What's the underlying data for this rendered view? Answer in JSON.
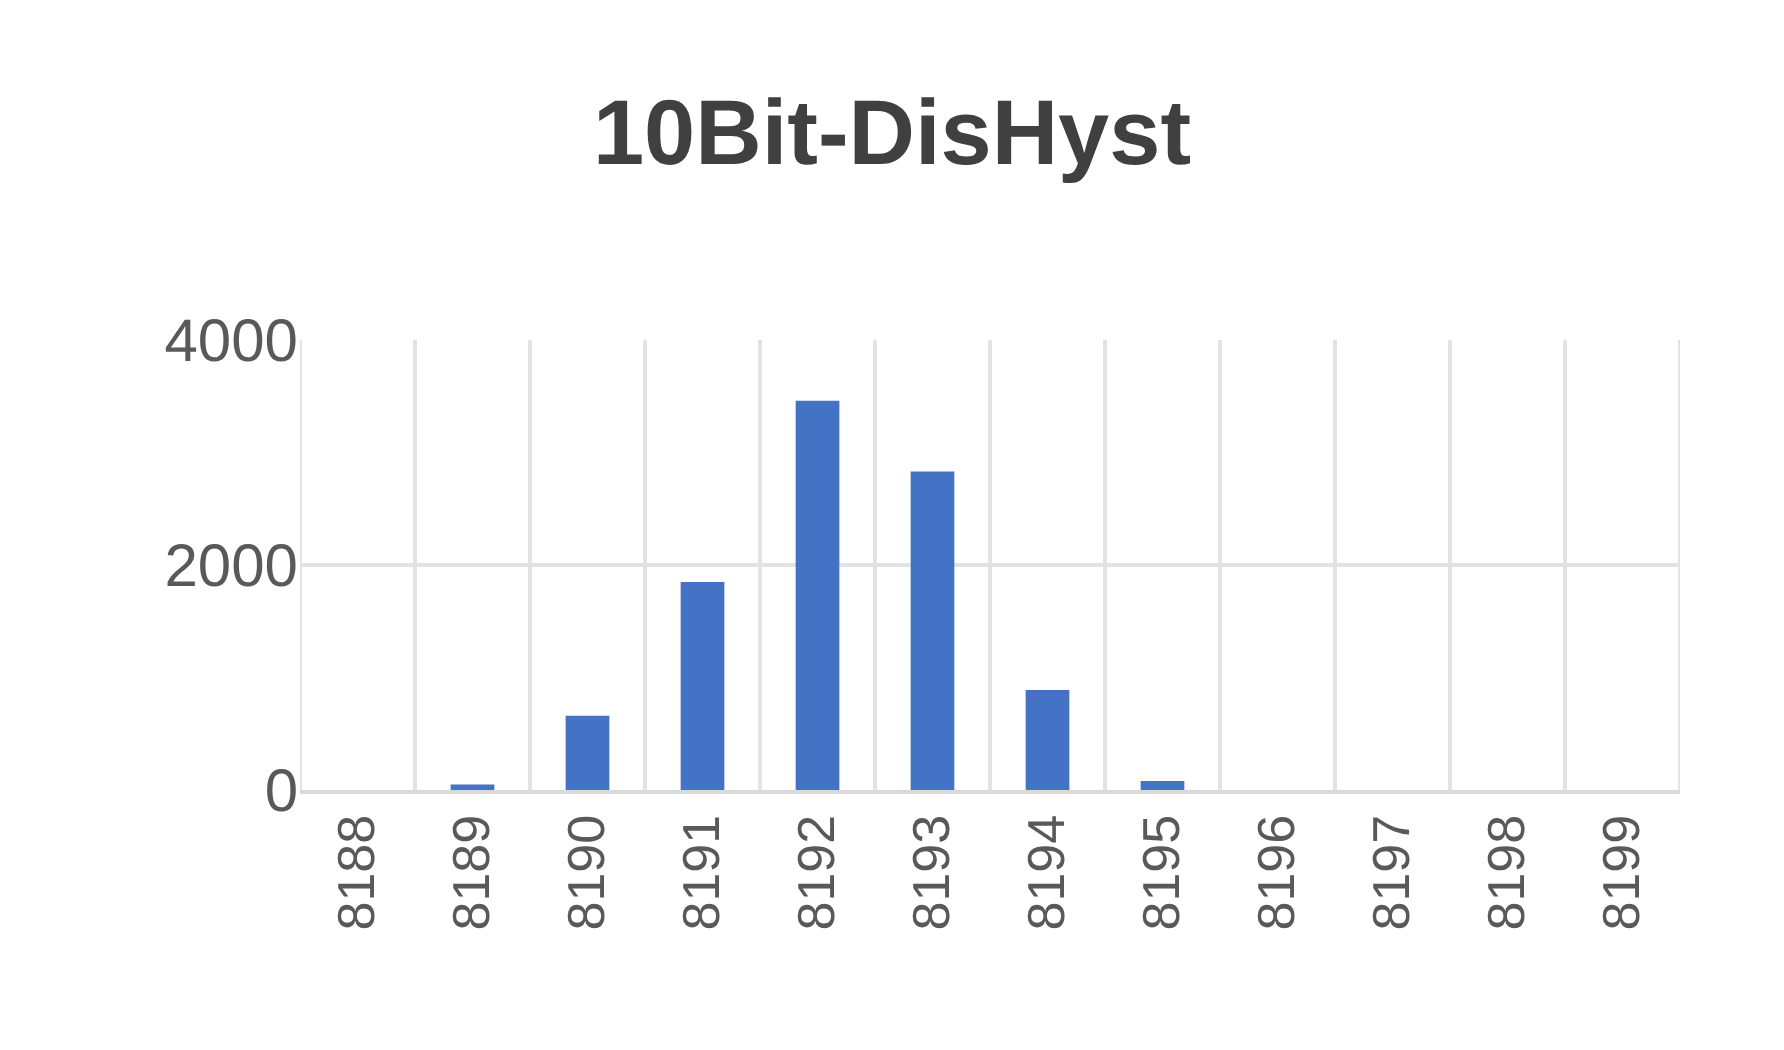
{
  "chart_data": {
    "type": "bar",
    "title": "10Bit-DisHyst",
    "categories": [
      "8188",
      "8189",
      "8190",
      "8191",
      "8192",
      "8193",
      "8194",
      "8195",
      "8196",
      "8197",
      "8198",
      "8199"
    ],
    "values": [
      0,
      50,
      660,
      1850,
      3460,
      2830,
      890,
      80,
      0,
      0,
      0,
      0
    ],
    "color": "#4472c4",
    "ylim": [
      0,
      4000
    ],
    "yticks": [
      0,
      2000,
      4000
    ],
    "grid": true
  }
}
